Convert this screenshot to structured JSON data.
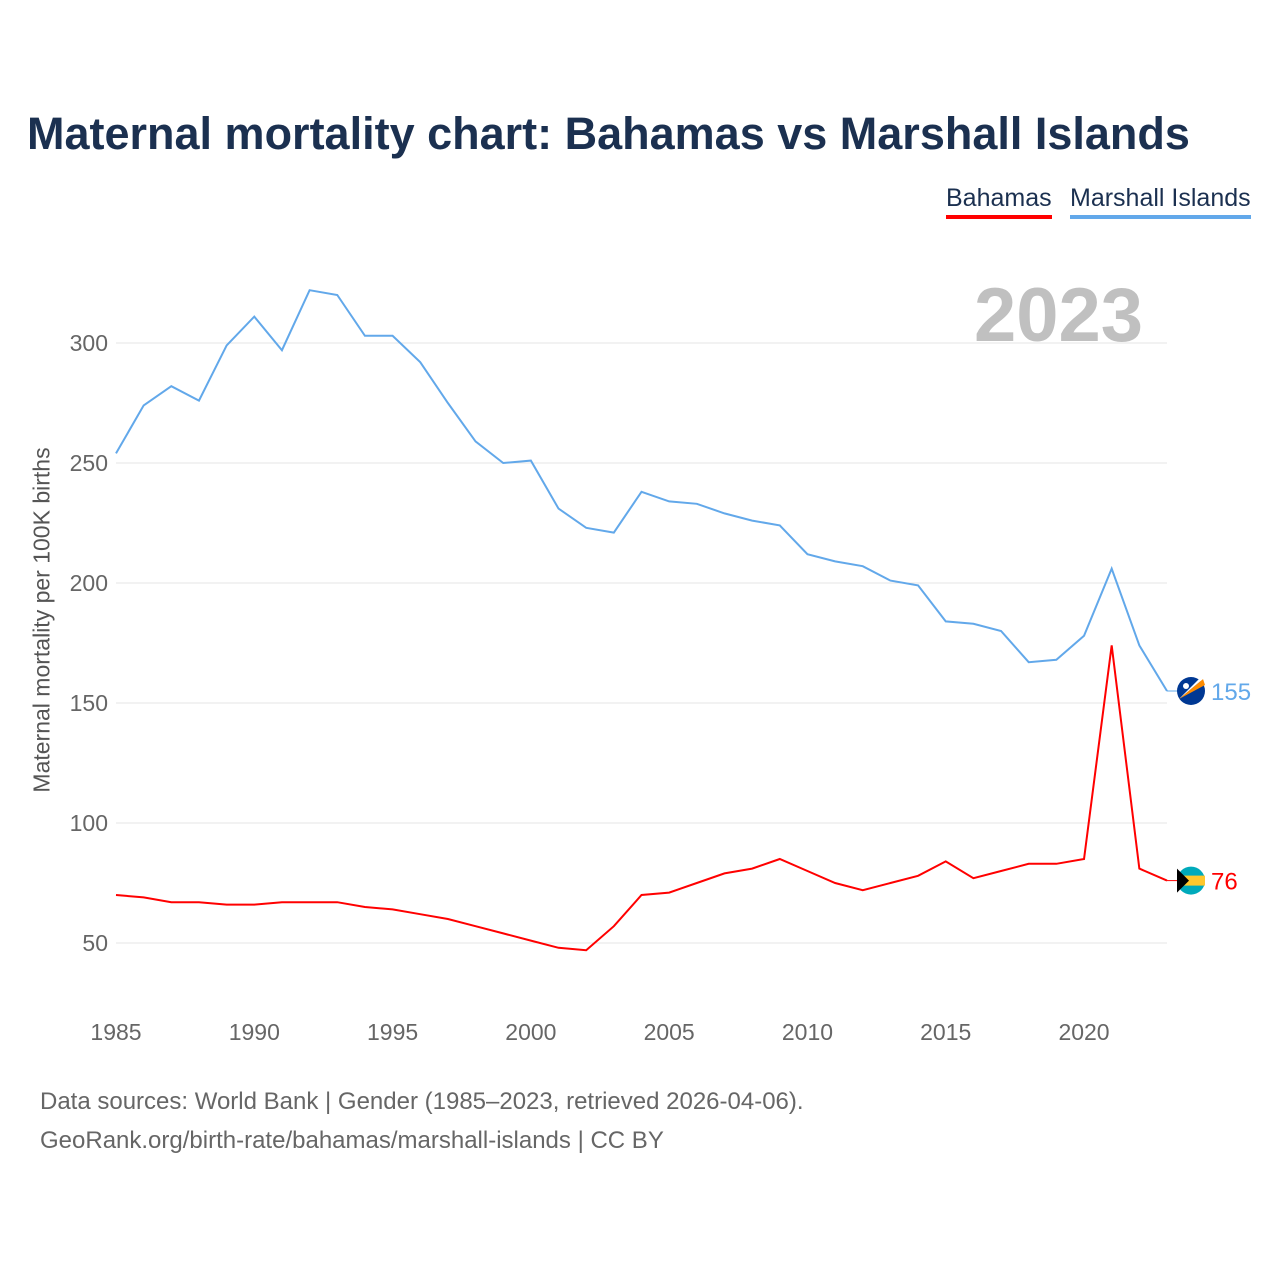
{
  "title": "Maternal mortality chart: Bahamas vs Marshall Islands",
  "year_label": "2023",
  "footer": {
    "line1": "Data sources: World Bank | Gender (1985–2023, retrieved 2026-04-06).",
    "line2": "GeoRank.org/birth-rate/bahamas/marshall-islands | CC BY"
  },
  "chart_data": {
    "type": "line",
    "title": "Maternal mortality chart: Bahamas vs Marshall Islands",
    "xlabel": "",
    "ylabel": "Maternal mortality per 100K births",
    "xlim": [
      1985,
      2023
    ],
    "ylim": [
      30,
      330
    ],
    "yticks": [
      50,
      100,
      150,
      200,
      250,
      300
    ],
    "xticks": [
      1985,
      1990,
      1995,
      2000,
      2005,
      2010,
      2015,
      2020
    ],
    "grid": true,
    "legend_position": "top-right",
    "x": [
      1985,
      1986,
      1987,
      1988,
      1989,
      1990,
      1991,
      1992,
      1993,
      1994,
      1995,
      1996,
      1997,
      1998,
      1999,
      2000,
      2001,
      2002,
      2003,
      2004,
      2005,
      2006,
      2007,
      2008,
      2009,
      2010,
      2011,
      2012,
      2013,
      2014,
      2015,
      2016,
      2017,
      2018,
      2019,
      2020,
      2021,
      2022,
      2023
    ],
    "series": [
      {
        "name": "Bahamas",
        "color": "#ff0000",
        "end_label": "76",
        "values": [
          70,
          69,
          67,
          67,
          66,
          66,
          67,
          67,
          67,
          65,
          64,
          62,
          60,
          57,
          54,
          51,
          48,
          47,
          57,
          70,
          71,
          75,
          79,
          81,
          85,
          80,
          75,
          72,
          75,
          78,
          84,
          77,
          80,
          83,
          83,
          85,
          174,
          81,
          76
        ]
      },
      {
        "name": "Marshall Islands",
        "color": "#62a8ea",
        "end_label": "155",
        "values": [
          254,
          274,
          282,
          276,
          299,
          311,
          297,
          322,
          320,
          303,
          303,
          292,
          275,
          259,
          250,
          251,
          231,
          223,
          221,
          238,
          234,
          233,
          229,
          226,
          224,
          212,
          209,
          207,
          201,
          199,
          184,
          183,
          180,
          167,
          168,
          178,
          206,
          174,
          155
        ]
      }
    ]
  }
}
